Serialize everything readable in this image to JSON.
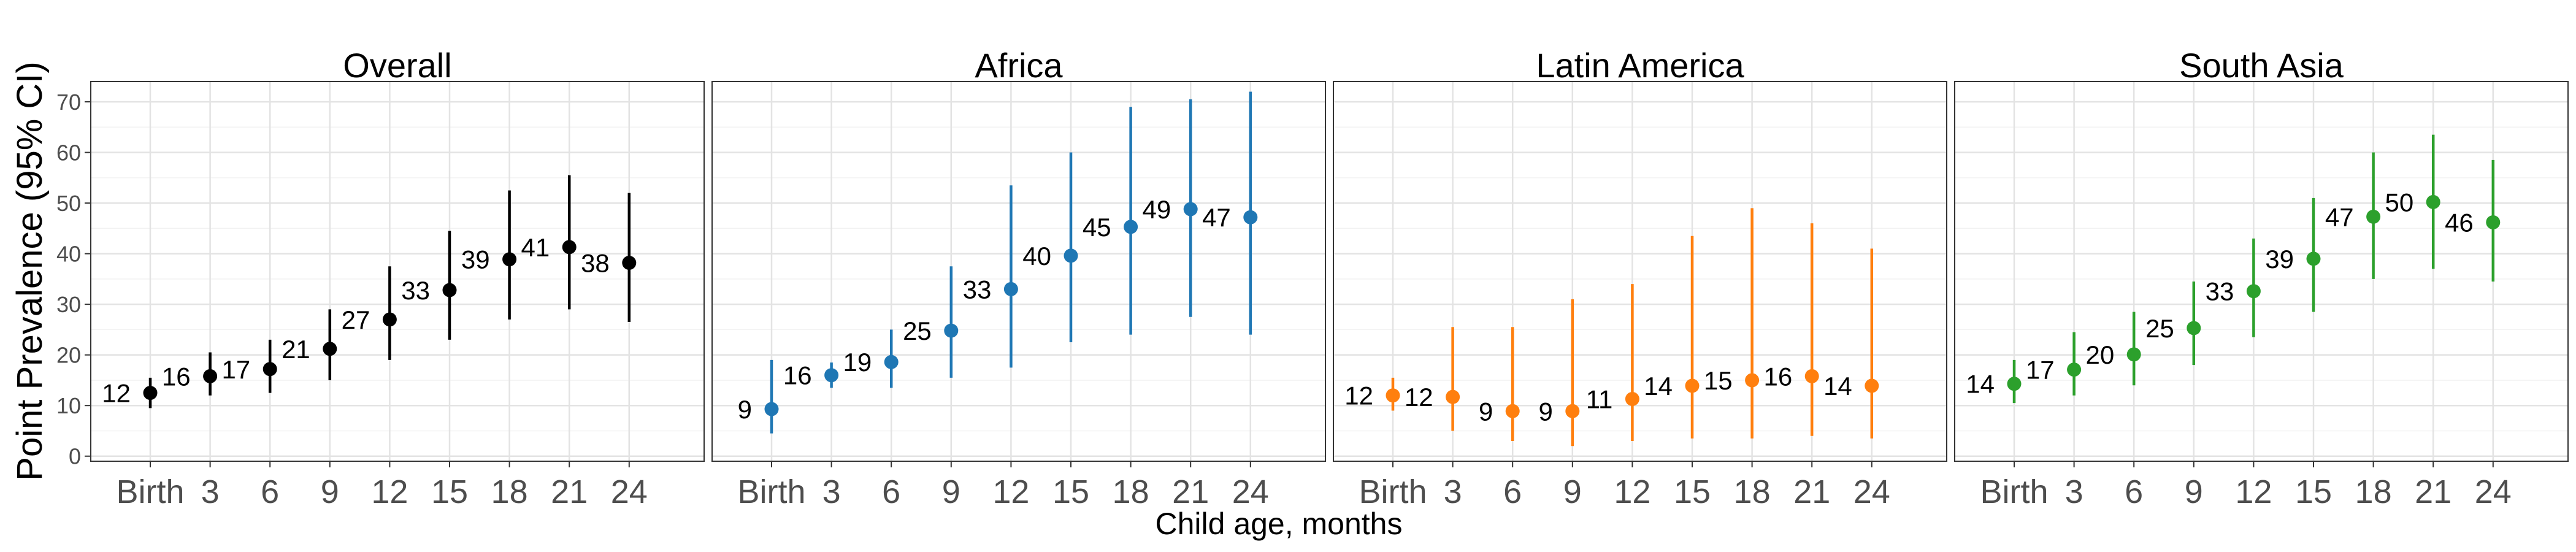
{
  "chart_data": {
    "type": "scatter",
    "xlabel": "Child age, months",
    "ylabel": "Point Prevalence (95% CI)",
    "ylim": [
      -1,
      74
    ],
    "yticks": [
      0,
      10,
      20,
      30,
      40,
      50,
      60,
      70
    ],
    "categories": [
      "Birth",
      "3",
      "6",
      "9",
      "12",
      "15",
      "18",
      "21",
      "24"
    ],
    "grid": true,
    "legend": "none",
    "panels": [
      {
        "title": "Overall",
        "color": "#000000",
        "points": [
          {
            "x": "Birth",
            "y": 12.5,
            "lo": 9.5,
            "hi": 15.5,
            "label": "12"
          },
          {
            "x": "3",
            "y": 15.8,
            "lo": 12,
            "hi": 20.5,
            "label": "16"
          },
          {
            "x": "6",
            "y": 17.2,
            "lo": 12.5,
            "hi": 23,
            "label": "17"
          },
          {
            "x": "9",
            "y": 21.2,
            "lo": 15,
            "hi": 29,
            "label": "21"
          },
          {
            "x": "12",
            "y": 27,
            "lo": 19,
            "hi": 37.5,
            "label": "27"
          },
          {
            "x": "15",
            "y": 32.8,
            "lo": 23,
            "hi": 44.5,
            "label": "33"
          },
          {
            "x": "18",
            "y": 38.9,
            "lo": 27,
            "hi": 52.5,
            "label": "39"
          },
          {
            "x": "21",
            "y": 41.3,
            "lo": 29,
            "hi": 55.5,
            "label": "41"
          },
          {
            "x": "24",
            "y": 38.2,
            "lo": 26.5,
            "hi": 52,
            "label": "38"
          }
        ]
      },
      {
        "title": "Africa",
        "color": "#1f77b4",
        "points": [
          {
            "x": "Birth",
            "y": 9.3,
            "lo": 4.5,
            "hi": 19,
            "label": "9"
          },
          {
            "x": "3",
            "y": 16,
            "lo": 13.5,
            "hi": 18.5,
            "label": "16"
          },
          {
            "x": "6",
            "y": 18.6,
            "lo": 13.5,
            "hi": 25,
            "label": "19"
          },
          {
            "x": "9",
            "y": 24.8,
            "lo": 15.5,
            "hi": 37.5,
            "label": "25"
          },
          {
            "x": "12",
            "y": 33,
            "lo": 17.5,
            "hi": 53.5,
            "label": "33"
          },
          {
            "x": "15",
            "y": 39.6,
            "lo": 22.5,
            "hi": 60,
            "label": "40"
          },
          {
            "x": "18",
            "y": 45.3,
            "lo": 24,
            "hi": 69,
            "label": "45"
          },
          {
            "x": "21",
            "y": 48.8,
            "lo": 27.5,
            "hi": 70.5,
            "label": "49"
          },
          {
            "x": "24",
            "y": 47.2,
            "lo": 24,
            "hi": 72,
            "label": "47"
          }
        ]
      },
      {
        "title": "Latin America",
        "color": "#ff7f0e",
        "points": [
          {
            "x": "Birth",
            "y": 12,
            "lo": 9,
            "hi": 15.5,
            "label": "12"
          },
          {
            "x": "3",
            "y": 11.7,
            "lo": 5,
            "hi": 25.5,
            "label": "12"
          },
          {
            "x": "6",
            "y": 8.9,
            "lo": 3,
            "hi": 25.5,
            "label": "9"
          },
          {
            "x": "9",
            "y": 8.9,
            "lo": 2,
            "hi": 31,
            "label": "9"
          },
          {
            "x": "12",
            "y": 11.3,
            "lo": 3,
            "hi": 34,
            "label": "11"
          },
          {
            "x": "15",
            "y": 13.9,
            "lo": 3.5,
            "hi": 43.5,
            "label": "14"
          },
          {
            "x": "18",
            "y": 15,
            "lo": 3.5,
            "hi": 49,
            "label": "15"
          },
          {
            "x": "21",
            "y": 15.8,
            "lo": 4,
            "hi": 46,
            "label": "16"
          },
          {
            "x": "24",
            "y": 13.9,
            "lo": 3.5,
            "hi": 41,
            "label": "14"
          }
        ]
      },
      {
        "title": "South Asia",
        "color": "#2ca02c",
        "points": [
          {
            "x": "Birth",
            "y": 14.3,
            "lo": 10.5,
            "hi": 19,
            "label": "14"
          },
          {
            "x": "3",
            "y": 17.1,
            "lo": 12,
            "hi": 24.5,
            "label": "17"
          },
          {
            "x": "6",
            "y": 20.1,
            "lo": 14,
            "hi": 28.5,
            "label": "20"
          },
          {
            "x": "9",
            "y": 25.3,
            "lo": 18,
            "hi": 34.5,
            "label": "25"
          },
          {
            "x": "12",
            "y": 32.6,
            "lo": 23.5,
            "hi": 43,
            "label": "33"
          },
          {
            "x": "15",
            "y": 39,
            "lo": 28.5,
            "hi": 51,
            "label": "39"
          },
          {
            "x": "18",
            "y": 47.3,
            "lo": 35,
            "hi": 60,
            "label": "47"
          },
          {
            "x": "21",
            "y": 50.2,
            "lo": 37,
            "hi": 63.5,
            "label": "50"
          },
          {
            "x": "24",
            "y": 46.2,
            "lo": 34.5,
            "hi": 58.5,
            "label": "46"
          }
        ]
      }
    ]
  }
}
